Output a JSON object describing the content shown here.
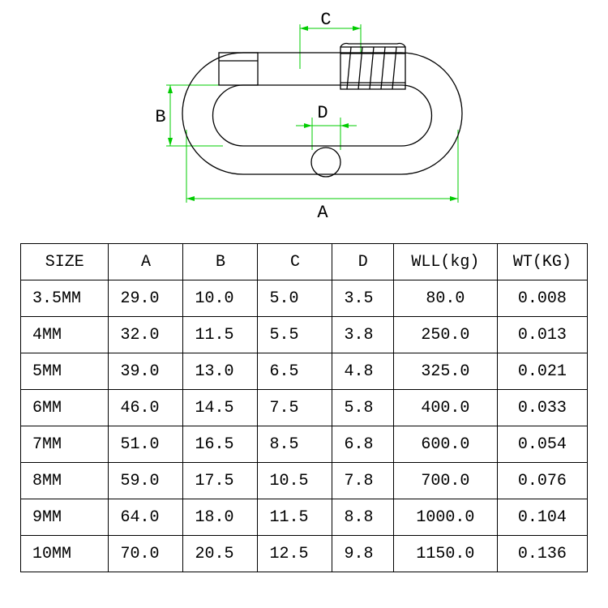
{
  "diagram": {
    "labels": {
      "A": "A",
      "B": "B",
      "C": "C",
      "D": "D"
    },
    "stroke_black": "#000000",
    "stroke_green": "#00cc00",
    "stroke_width_black": 1.2,
    "stroke_width_green": 1.0,
    "background": "#ffffff"
  },
  "table": {
    "headers": [
      "SIZE",
      "A",
      "B",
      "C",
      "D",
      "WLL(kg)",
      "WT(KG)"
    ],
    "rows": [
      [
        "3.5MM",
        "29.0",
        "10.0",
        "5.0",
        "3.5",
        "80.0",
        "0.008"
      ],
      [
        "4MM",
        "32.0",
        "11.5",
        "5.5",
        "3.8",
        "250.0",
        "0.013"
      ],
      [
        "5MM",
        "39.0",
        "13.0",
        "6.5",
        "4.8",
        "325.0",
        "0.021"
      ],
      [
        "6MM",
        "46.0",
        "14.5",
        "7.5",
        "5.8",
        "400.0",
        "0.033"
      ],
      [
        "7MM",
        "51.0",
        "16.5",
        "8.5",
        "6.8",
        "600.0",
        "0.054"
      ],
      [
        "8MM",
        "59.0",
        "17.5",
        "10.5",
        "7.8",
        "700.0",
        "0.076"
      ],
      [
        "9MM",
        "64.0",
        "18.0",
        "11.5",
        "8.8",
        "1000.0",
        "0.104"
      ],
      [
        "10MM",
        "70.0",
        "20.5",
        "12.5",
        "9.8",
        "1150.0",
        "0.136"
      ]
    ],
    "col_align": [
      "left-ish",
      "left-ish",
      "left-ish",
      "left-ish",
      "left-ish",
      "center",
      "center"
    ],
    "font_size": 20,
    "border_color": "#000000"
  }
}
